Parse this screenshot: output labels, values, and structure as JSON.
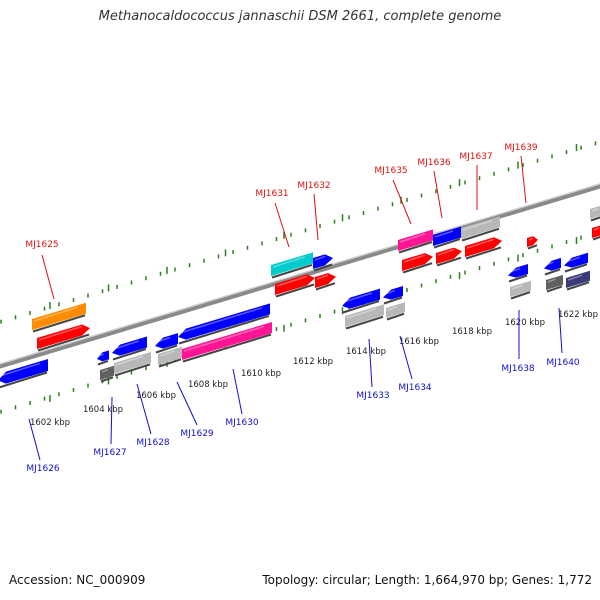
{
  "title": "Methanocaldococcus jannaschii DSM 2661, complete genome",
  "footer": {
    "accession": "Accession: NC_000909",
    "summary": "Topology: circular; Length: 1,664,970 bp; Genes: 1,772"
  },
  "colors": {
    "backbone": "#8a8a8a",
    "tick": "#2e7d1e",
    "forward_label": "#dd1111",
    "reverse_label": "#1111cc",
    "ruler_label": "#222222",
    "red": "#ff0000",
    "blue": "#0000ff",
    "cyan": "#00cccc",
    "orange": "#ff8c00",
    "magenta": "#ff1493",
    "grey": "#b8b8b8",
    "darkgrey": "#606060",
    "slate": "#3b3b7a"
  },
  "ruler": [
    "1602 kbp",
    "1604 kbp",
    "1606 kbp",
    "1608 kbp",
    "1610 kbp",
    "1612 kbp",
    "1614 kbp",
    "1616 kbp",
    "1618 kbp",
    "1620 kbp",
    "1622 kbp"
  ],
  "gene_labels": {
    "forward": [
      "MJ1625",
      "MJ1631",
      "MJ1632",
      "MJ1635",
      "MJ1636",
      "MJ1637",
      "MJ1639"
    ],
    "reverse": [
      "MJ1626",
      "MJ1627",
      "MJ1628",
      "MJ1629",
      "MJ1630",
      "MJ1633",
      "MJ1634",
      "MJ1638",
      "MJ1640"
    ]
  }
}
